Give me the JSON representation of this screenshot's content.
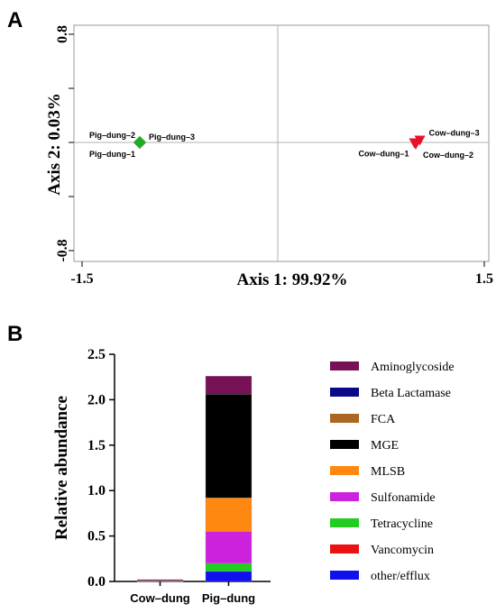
{
  "panels": {
    "a_letter": "A",
    "b_letter": "B"
  },
  "chart_data": [
    {
      "type": "scatter",
      "xlabel": "Axis 1: 99.92%",
      "ylabel": "Axis 2: 0.03%",
      "xlim": [
        -1.5,
        1.5
      ],
      "ylim": [
        -0.8,
        0.8
      ],
      "x_ticks": [
        "-1.5",
        "1.5"
      ],
      "y_ticks": [
        "0.8",
        "-0.8"
      ],
      "grid": "zero-lines",
      "points": [
        {
          "label": "Pig-dung-1",
          "x": -1.0,
          "y": 0.0,
          "group": "Pig-dung",
          "color": "#22aa22",
          "marker": "diamond"
        },
        {
          "label": "Pig-dung-2",
          "x": -1.0,
          "y": 0.0,
          "group": "Pig-dung",
          "color": "#22aa22",
          "marker": "diamond"
        },
        {
          "label": "Pig-dung-3",
          "x": -1.0,
          "y": 0.0,
          "group": "Pig-dung",
          "color": "#22aa22",
          "marker": "diamond"
        },
        {
          "label": "Cow-dung-1",
          "x": 0.99,
          "y": -0.01,
          "group": "Cow-dung",
          "color": "#e8102a",
          "marker": "triangle-down"
        },
        {
          "label": "Cow-dung-2",
          "x": 1.0,
          "y": -0.02,
          "group": "Cow-dung",
          "color": "#e8102a",
          "marker": "triangle-down"
        },
        {
          "label": "Cow-dung-3",
          "x": 1.03,
          "y": 0.01,
          "group": "Cow-dung",
          "color": "#e8102a",
          "marker": "triangle-down"
        }
      ]
    },
    {
      "type": "bar",
      "stacked": true,
      "categories": [
        "Cow-dung",
        "Pig-dung"
      ],
      "ylabel": "Relative abundance",
      "ylim": [
        0,
        2.5
      ],
      "y_ticks": [
        "0.0",
        "0.5",
        "1.0",
        "1.5",
        "2.0",
        "2.5"
      ],
      "legend_position": "right",
      "series": [
        {
          "name": "other/efflux",
          "color": "#1010ee",
          "values": [
            0.003,
            0.11
          ]
        },
        {
          "name": "Vancomycin",
          "color": "#ee1111",
          "values": [
            0.0,
            0.0
          ]
        },
        {
          "name": "Tetracycline",
          "color": "#22cc22",
          "values": [
            0.002,
            0.09
          ]
        },
        {
          "name": "Sulfonamide",
          "color": "#cc22dd",
          "values": [
            0.002,
            0.35
          ]
        },
        {
          "name": "MLSB",
          "color": "#ff8811",
          "values": [
            0.012,
            0.37
          ]
        },
        {
          "name": "MGE",
          "color": "#000000",
          "values": [
            0.001,
            1.14
          ]
        },
        {
          "name": "FCA",
          "color": "#aa6622",
          "values": [
            0.0,
            0.0
          ]
        },
        {
          "name": "Beta Lactamase",
          "color": "#0a0a88",
          "values": [
            0.0,
            0.0
          ]
        },
        {
          "name": "Aminoglycoside",
          "color": "#771155",
          "values": [
            0.0,
            0.2
          ]
        }
      ],
      "legend_order": [
        "Aminoglycoside",
        "Beta Lactamase",
        "FCA",
        "MGE",
        "MLSB",
        "Sulfonamide",
        "Tetracycline",
        "Vancomycin",
        "other/efflux"
      ]
    }
  ]
}
